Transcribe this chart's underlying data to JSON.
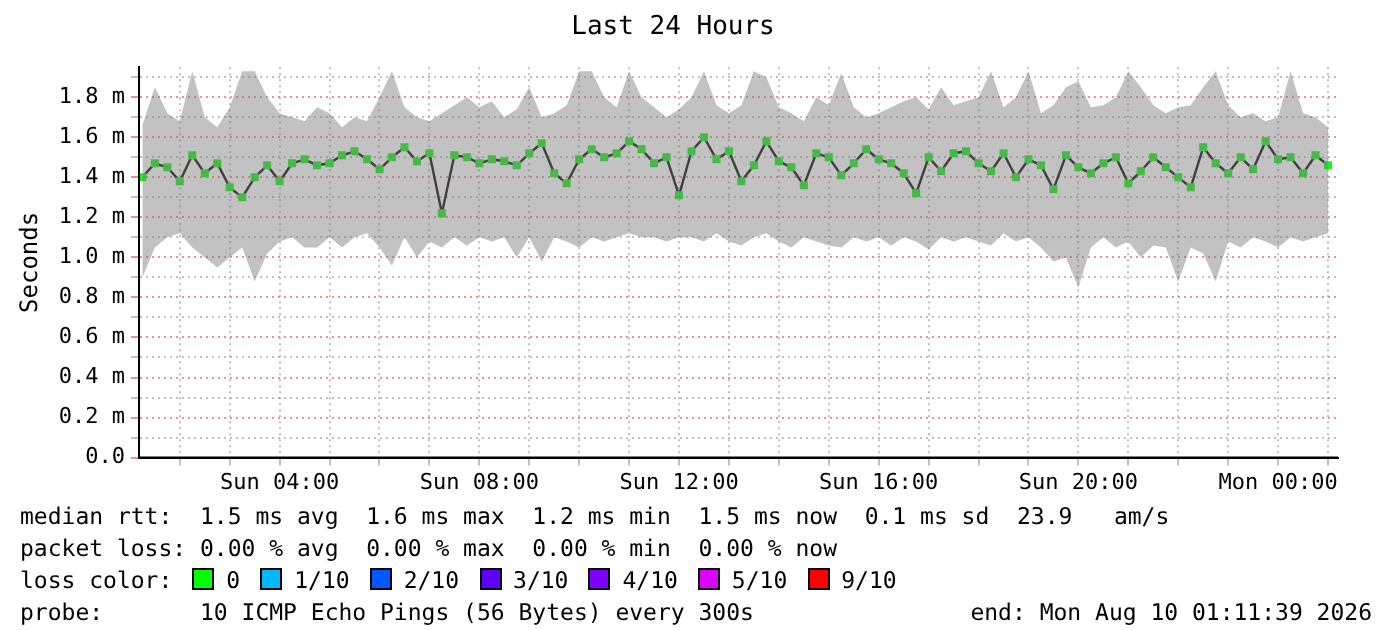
{
  "chart_data": {
    "type": "line",
    "title": "Last 24 Hours",
    "ylabel": "Seconds",
    "x": [
      "2026-08-09T01:15",
      "2026-08-09T01:30",
      "2026-08-09T01:45",
      "2026-08-09T02:00",
      "2026-08-09T02:15",
      "2026-08-09T02:30",
      "2026-08-09T02:45",
      "2026-08-09T03:00",
      "2026-08-09T03:15",
      "2026-08-09T03:30",
      "2026-08-09T03:45",
      "2026-08-09T04:00",
      "2026-08-09T04:15",
      "2026-08-09T04:30",
      "2026-08-09T04:45",
      "2026-08-09T05:00",
      "2026-08-09T05:15",
      "2026-08-09T05:30",
      "2026-08-09T05:45",
      "2026-08-09T06:00",
      "2026-08-09T06:15",
      "2026-08-09T06:30",
      "2026-08-09T06:45",
      "2026-08-09T07:00",
      "2026-08-09T07:15",
      "2026-08-09T07:30",
      "2026-08-09T07:45",
      "2026-08-09T08:00",
      "2026-08-09T08:15",
      "2026-08-09T08:30",
      "2026-08-09T08:45",
      "2026-08-09T09:00",
      "2026-08-09T09:15",
      "2026-08-09T09:30",
      "2026-08-09T09:45",
      "2026-08-09T10:00",
      "2026-08-09T10:15",
      "2026-08-09T10:30",
      "2026-08-09T10:45",
      "2026-08-09T11:00",
      "2026-08-09T11:15",
      "2026-08-09T11:30",
      "2026-08-09T11:45",
      "2026-08-09T12:00",
      "2026-08-09T12:15",
      "2026-08-09T12:30",
      "2026-08-09T12:45",
      "2026-08-09T13:00",
      "2026-08-09T13:15",
      "2026-08-09T13:30",
      "2026-08-09T13:45",
      "2026-08-09T14:00",
      "2026-08-09T14:15",
      "2026-08-09T14:30",
      "2026-08-09T14:45",
      "2026-08-09T15:00",
      "2026-08-09T15:15",
      "2026-08-09T15:30",
      "2026-08-09T15:45",
      "2026-08-09T16:00",
      "2026-08-09T16:15",
      "2026-08-09T16:30",
      "2026-08-09T16:45",
      "2026-08-09T17:00",
      "2026-08-09T17:15",
      "2026-08-09T17:30",
      "2026-08-09T17:45",
      "2026-08-09T18:00",
      "2026-08-09T18:15",
      "2026-08-09T18:30",
      "2026-08-09T18:45",
      "2026-08-09T19:00",
      "2026-08-09T19:15",
      "2026-08-09T19:30",
      "2026-08-09T19:45",
      "2026-08-09T20:00",
      "2026-08-09T20:15",
      "2026-08-09T20:30",
      "2026-08-09T20:45",
      "2026-08-09T21:00",
      "2026-08-09T21:15",
      "2026-08-09T21:30",
      "2026-08-09T21:45",
      "2026-08-09T22:00",
      "2026-08-09T22:15",
      "2026-08-09T22:30",
      "2026-08-09T22:45",
      "2026-08-09T23:00",
      "2026-08-09T23:15",
      "2026-08-09T23:30",
      "2026-08-09T23:45",
      "2026-08-10T00:00",
      "2026-08-10T00:15",
      "2026-08-10T00:30",
      "2026-08-10T00:45",
      "2026-08-10T01:00"
    ],
    "series": [
      {
        "color": "#22ee22",
        "values": [
          1.4,
          1.47,
          1.45,
          1.38,
          1.51,
          1.42,
          1.47,
          1.35,
          1.3,
          1.4,
          1.46,
          1.38,
          1.47,
          1.49,
          1.46,
          1.47,
          1.51,
          1.53,
          1.49,
          1.44,
          1.5,
          1.55,
          1.48,
          1.52,
          1.22,
          1.51,
          1.5,
          1.47,
          1.49,
          1.48,
          1.46,
          1.52,
          1.57,
          1.42,
          1.37,
          1.49,
          1.54,
          1.5,
          1.52,
          1.58,
          1.54,
          1.47,
          1.5,
          1.31,
          1.53,
          1.6,
          1.49,
          1.53,
          1.38,
          1.46,
          1.58,
          1.48,
          1.45,
          1.36,
          1.52,
          1.5,
          1.41,
          1.47,
          1.54,
          1.49,
          1.47,
          1.42,
          1.32,
          1.5,
          1.43,
          1.52,
          1.53,
          1.47,
          1.43,
          1.52,
          1.4,
          1.49,
          1.46,
          1.34,
          1.51,
          1.45,
          1.42,
          1.47,
          1.5,
          1.37,
          1.43,
          1.5,
          1.45,
          1.4,
          1.35,
          1.55,
          1.47,
          1.42,
          1.5,
          1.44,
          1.58,
          1.49,
          1.5,
          1.42,
          1.51,
          1.46
        ],
        "lower": [
          0.9,
          1.05,
          1.1,
          1.12,
          1.05,
          1.0,
          0.95,
          1.0,
          1.05,
          0.88,
          1.02,
          1.08,
          1.1,
          1.05,
          1.05,
          1.1,
          1.05,
          1.1,
          1.12,
          1.05,
          0.96,
          1.1,
          1.0,
          1.08,
          1.05,
          1.1,
          1.06,
          1.1,
          1.08,
          1.1,
          1.0,
          1.1,
          0.98,
          1.1,
          1.08,
          1.05,
          1.1,
          1.08,
          1.1,
          1.12,
          1.1,
          1.1,
          1.08,
          1.1,
          1.1,
          1.08,
          1.12,
          1.08,
          1.06,
          1.1,
          1.12,
          1.08,
          1.05,
          1.1,
          1.08,
          1.06,
          1.05,
          1.1,
          1.08,
          1.1,
          1.06,
          1.1,
          1.08,
          1.04,
          1.1,
          1.08,
          1.1,
          1.08,
          1.06,
          1.12,
          1.08,
          1.1,
          1.05,
          0.98,
          1.0,
          0.85,
          1.05,
          1.1,
          1.05,
          1.08,
          1.0,
          1.06,
          1.05,
          0.88,
          1.05,
          1.02,
          0.88,
          1.08,
          1.05,
          1.1,
          1.08,
          1.05,
          1.1,
          1.08,
          1.1,
          1.12
        ],
        "upper": [
          1.66,
          1.85,
          1.72,
          1.68,
          1.93,
          1.7,
          1.65,
          1.75,
          1.93,
          1.93,
          1.8,
          1.72,
          1.7,
          1.68,
          1.75,
          1.72,
          1.65,
          1.7,
          1.68,
          1.8,
          1.93,
          1.75,
          1.7,
          1.68,
          1.72,
          1.76,
          1.8,
          1.75,
          1.78,
          1.7,
          1.74,
          1.85,
          1.7,
          1.72,
          1.76,
          1.93,
          1.93,
          1.8,
          1.75,
          1.93,
          1.8,
          1.75,
          1.7,
          1.74,
          1.8,
          1.93,
          1.76,
          1.72,
          1.76,
          1.93,
          1.9,
          1.75,
          1.72,
          1.68,
          1.8,
          1.76,
          1.92,
          1.75,
          1.7,
          1.72,
          1.75,
          1.78,
          1.8,
          1.74,
          1.85,
          1.76,
          1.78,
          1.8,
          1.93,
          1.75,
          1.8,
          1.93,
          1.72,
          1.76,
          1.85,
          1.88,
          1.75,
          1.76,
          1.8,
          1.93,
          1.85,
          1.76,
          1.72,
          1.75,
          1.76,
          1.85,
          1.93,
          1.76,
          1.7,
          1.72,
          1.68,
          1.7,
          1.93,
          1.72,
          1.7,
          1.65
        ]
      }
    ],
    "xlim": [
      "2026-08-09T01:11",
      "2026-08-10T01:12"
    ],
    "xticks": [
      {
        "value": "2026-08-09T02:00",
        "label": null
      },
      {
        "value": "2026-08-09T03:00",
        "label": null
      },
      {
        "value": "2026-08-09T04:00",
        "label": "Sun 04:00"
      },
      {
        "value": "2026-08-09T05:00",
        "label": null
      },
      {
        "value": "2026-08-09T06:00",
        "label": null
      },
      {
        "value": "2026-08-09T07:00",
        "label": null
      },
      {
        "value": "2026-08-09T08:00",
        "label": "Sun 08:00"
      },
      {
        "value": "2026-08-09T09:00",
        "label": null
      },
      {
        "value": "2026-08-09T10:00",
        "label": null
      },
      {
        "value": "2026-08-09T11:00",
        "label": null
      },
      {
        "value": "2026-08-09T12:00",
        "label": "Sun 12:00"
      },
      {
        "value": "2026-08-09T13:00",
        "label": null
      },
      {
        "value": "2026-08-09T14:00",
        "label": null
      },
      {
        "value": "2026-08-09T15:00",
        "label": null
      },
      {
        "value": "2026-08-09T16:00",
        "label": "Sun 16:00"
      },
      {
        "value": "2026-08-09T17:00",
        "label": null
      },
      {
        "value": "2026-08-09T18:00",
        "label": null
      },
      {
        "value": "2026-08-09T19:00",
        "label": null
      },
      {
        "value": "2026-08-09T20:00",
        "label": "Sun 20:00"
      },
      {
        "value": "2026-08-09T21:00",
        "label": null
      },
      {
        "value": "2026-08-09T22:00",
        "label": null
      },
      {
        "value": "2026-08-09T23:00",
        "label": null
      },
      {
        "value": "2026-08-10T00:00",
        "label": "Mon 00:00"
      },
      {
        "value": "2026-08-10T01:00",
        "label": null
      }
    ],
    "ylim": [
      0,
      1.95
    ],
    "yticks": [
      {
        "value": 0,
        "label": "0.0"
      },
      {
        "value": 0.1,
        "label": null
      },
      {
        "value": 0.2,
        "label": "0.2 m"
      },
      {
        "value": 0.3,
        "label": null
      },
      {
        "value": 0.4,
        "label": "0.4 m"
      },
      {
        "value": 0.5,
        "label": null
      },
      {
        "value": 0.6,
        "label": "0.6 m"
      },
      {
        "value": 0.7,
        "label": null
      },
      {
        "value": 0.8,
        "label": "0.8 m"
      },
      {
        "value": 0.9,
        "label": null
      },
      {
        "value": 1.0,
        "label": "1.0 m"
      },
      {
        "value": 1.1,
        "label": null
      },
      {
        "value": 1.2,
        "label": "1.2 m"
      },
      {
        "value": 1.3,
        "label": null
      },
      {
        "value": 1.4,
        "label": "1.4 m"
      },
      {
        "value": 1.5,
        "label": null
      },
      {
        "value": 1.6,
        "label": "1.6 m"
      },
      {
        "value": 1.7,
        "label": null
      },
      {
        "value": 1.8,
        "label": "1.8 m"
      },
      {
        "value": 1.9,
        "label": null
      }
    ],
    "grid": true,
    "legend": false,
    "marker": "square",
    "line_style": "solid",
    "annotations": [
      "median rtt:  1.5 ms avg  1.6 ms max  1.2 ms min  1.5 ms now  0.1 ms sd  23.9   am/s",
      "packet loss: 0.00 % avg  0.00 % max  0.00 % min  0.00 % now",
      "loss color:",
      "0",
      "1/10",
      "2/10",
      "3/10",
      "4/10",
      "5/10",
      "9/10",
      "probe:       10 ICMP Echo Pings (56 Bytes) every 300s",
      "end: Mon Aug 10 01:11:39 2026"
    ]
  }
}
